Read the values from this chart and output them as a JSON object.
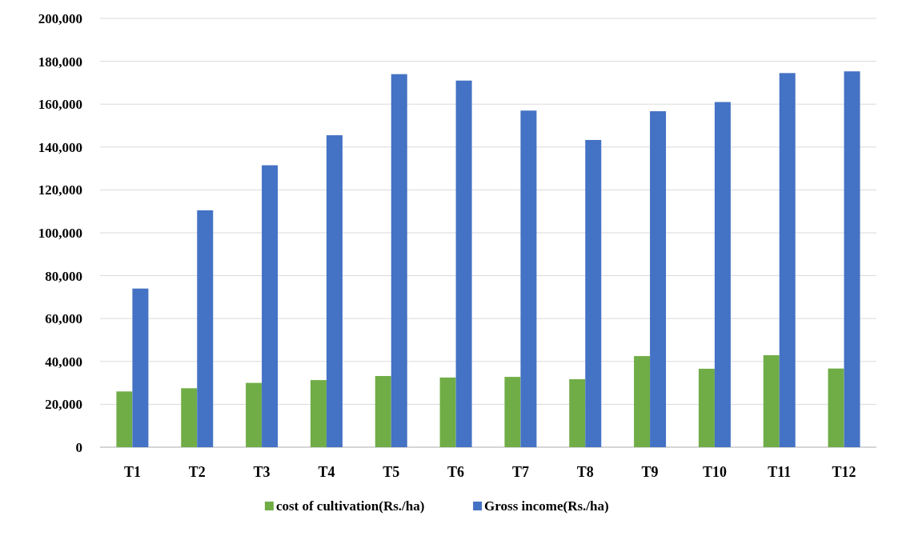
{
  "chart_data": {
    "type": "bar",
    "categories": [
      "T1",
      "T2",
      "T3",
      "T4",
      "T5",
      "T6",
      "T7",
      "T8",
      "T9",
      "T10",
      "T11",
      "T12"
    ],
    "series": [
      {
        "name": "cost of cultivation(Rs./ha)",
        "color": "#70ad47",
        "values": [
          26000,
          27500,
          30000,
          31300,
          33200,
          32500,
          32800,
          31700,
          42500,
          36600,
          42900,
          36700
        ]
      },
      {
        "name": "Gross income(Rs./ha)",
        "color": "#4472c4",
        "values": [
          74000,
          110500,
          131500,
          145500,
          174000,
          171000,
          157000,
          143300,
          156700,
          161000,
          174500,
          175300
        ]
      }
    ],
    "ylim": [
      0,
      200000
    ],
    "yticks": [
      {
        "value": 0,
        "label": "0"
      },
      {
        "value": 20000,
        "label": "20,000"
      },
      {
        "value": 40000,
        "label": "40,000"
      },
      {
        "value": 60000,
        "label": "60,000"
      },
      {
        "value": 80000,
        "label": "80,000"
      },
      {
        "value": 100000,
        "label": "100,000"
      },
      {
        "value": 120000,
        "label": "120,000"
      },
      {
        "value": 140000,
        "label": "140,000"
      },
      {
        "value": 160000,
        "label": "160,000"
      },
      {
        "value": 180000,
        "label": "180,000"
      },
      {
        "value": 200000,
        "label": "200,000"
      }
    ],
    "grid": "y",
    "legend": "bottom"
  }
}
